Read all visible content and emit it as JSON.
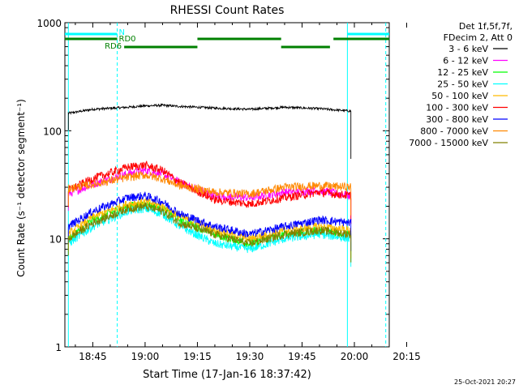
{
  "chart_data": {
    "type": "line",
    "title": "RHESSI Count Rates",
    "xlabel": "Start Time (17-Jan-16 18:37:42)",
    "ylabel": "Count Rate (s⁻¹ detector segment⁻¹)",
    "ylog": true,
    "ylim": [
      1,
      1000
    ],
    "xlim_minutes": [
      -23,
      70
    ],
    "x_ticks": [
      {
        "m": -15,
        "label": "18:45"
      },
      {
        "m": 0,
        "label": "19:00"
      },
      {
        "m": 15,
        "label": "19:15"
      },
      {
        "m": 30,
        "label": "19:30"
      },
      {
        "m": 45,
        "label": "19:45"
      },
      {
        "m": 60,
        "label": "20:00"
      },
      {
        "m": 75,
        "label": "20:15"
      }
    ],
    "y_ticks": [
      {
        "v": 1,
        "label": "1"
      },
      {
        "v": 10,
        "label": "10"
      },
      {
        "v": 100,
        "label": "100"
      },
      {
        "v": 1000,
        "label": "1000"
      }
    ],
    "legend_header": [
      "Det 1f,5f,7f,",
      "FDecim 2, Att 0"
    ],
    "legend_position": "outside-right",
    "timestamp": "25-Oct-2021 20:27",
    "x_reference": "minutes after 19:00",
    "series": [
      {
        "name": "3 - 6 keV",
        "color": "#000000",
        "x": [
          -22,
          -15,
          -5,
          0,
          5,
          10,
          20,
          30,
          40,
          50,
          59
        ],
        "y": [
          145,
          158,
          165,
          170,
          172,
          168,
          162,
          158,
          165,
          160,
          152
        ]
      },
      {
        "name": "6 - 12 keV",
        "color": "#ff00ff",
        "x": [
          -22,
          -15,
          -5,
          0,
          5,
          10,
          20,
          30,
          40,
          50,
          59
        ],
        "y": [
          26,
          32,
          40,
          43,
          40,
          33,
          25,
          24,
          27,
          28,
          25
        ]
      },
      {
        "name": "12 - 25 keV",
        "color": "#00ff00",
        "x": [
          -22,
          -15,
          -5,
          0,
          5,
          10,
          20,
          30,
          40,
          50,
          59
        ],
        "y": [
          10,
          15,
          20,
          21,
          19,
          15,
          11,
          9,
          11,
          12,
          11
        ]
      },
      {
        "name": "25 - 50 keV",
        "color": "#00ffff",
        "x": [
          -22,
          -15,
          -5,
          0,
          5,
          10,
          20,
          30,
          40,
          50,
          59
        ],
        "y": [
          9,
          13,
          18,
          19,
          17,
          13,
          9,
          8,
          10,
          11,
          10
        ]
      },
      {
        "name": "50 - 100 keV",
        "color": "#ffbb00",
        "x": [
          -22,
          -15,
          -5,
          0,
          5,
          10,
          20,
          30,
          40,
          50,
          59
        ],
        "y": [
          11,
          16,
          21,
          22,
          20,
          16,
          12,
          10,
          12,
          13,
          12
        ]
      },
      {
        "name": "100 - 300 keV",
        "color": "#ff0000",
        "x": [
          -22,
          -15,
          -5,
          0,
          5,
          10,
          20,
          30,
          40,
          50,
          59
        ],
        "y": [
          28,
          36,
          46,
          48,
          43,
          33,
          23,
          21,
          24,
          27,
          25
        ]
      },
      {
        "name": "300 - 800 keV",
        "color": "#0000ff",
        "x": [
          -22,
          -15,
          -5,
          0,
          5,
          10,
          20,
          30,
          40,
          50,
          59
        ],
        "y": [
          13,
          18,
          24,
          25,
          22,
          17,
          13,
          11,
          13,
          15,
          14
        ]
      },
      {
        "name": "800 - 7000 keV",
        "color": "#ff8800",
        "x": [
          -22,
          -15,
          -5,
          0,
          5,
          10,
          20,
          30,
          40,
          50,
          59
        ],
        "y": [
          29,
          32,
          37,
          39,
          36,
          31,
          27,
          26,
          30,
          31,
          30
        ]
      },
      {
        "name": "7000 - 15000 keV",
        "color": "#808000",
        "x": [
          -22,
          -15,
          -5,
          0,
          5,
          10,
          20,
          30,
          40,
          50,
          59
        ],
        "y": [
          10,
          14,
          19,
          20,
          18,
          14,
          11,
          9,
          11,
          12,
          11
        ]
      }
    ],
    "annotations": [
      {
        "label": "N",
        "color": "#00ffff",
        "segments": [
          [
            -23,
            -8
          ],
          [
            58,
            70
          ]
        ]
      },
      {
        "label": "RD0",
        "color": "#008000",
        "segments": [
          [
            -23,
            -8
          ],
          [
            15,
            39
          ],
          [
            54,
            70
          ]
        ]
      },
      {
        "label": "RD6",
        "color": "#008000",
        "segments": [
          [
            -6,
            15
          ],
          [
            39,
            53
          ]
        ]
      }
    ],
    "vertical_lines": [
      {
        "m": -22,
        "color": "#00ffff",
        "style": "solid"
      },
      {
        "m": -8,
        "color": "#00ffff",
        "style": "dashed"
      },
      {
        "m": 58,
        "color": "#00ffff",
        "style": "solid"
      },
      {
        "m": 69,
        "color": "#00ffff",
        "style": "dashed"
      }
    ]
  }
}
